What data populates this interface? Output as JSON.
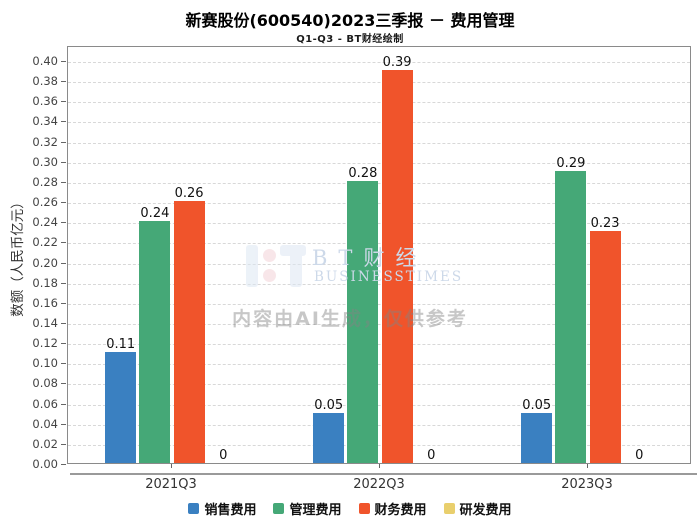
{
  "watermark": {
    "brand_cn": "BT财经",
    "brand_en": "BUSINESSTIMES",
    "disclaimer": "内容由AI生成，仅供参考"
  },
  "chart_data": {
    "type": "bar",
    "title": "新赛股份(600540)2023三季报 － 费用管理",
    "subtitle": "Q1-Q3 - BT财经绘制",
    "ylabel": "数额（人民币亿元）",
    "categories": [
      "2021Q3",
      "2022Q3",
      "2023Q3"
    ],
    "series": [
      {
        "name": "销售费用",
        "color": "#3a80c1",
        "values": [
          0.11,
          0.05,
          0.05
        ]
      },
      {
        "name": "管理费用",
        "color": "#45a877",
        "values": [
          0.24,
          0.28,
          0.29
        ]
      },
      {
        "name": "财务费用",
        "color": "#f0542b",
        "values": [
          0.26,
          0.39,
          0.23
        ]
      },
      {
        "name": "研发费用",
        "color": "#e9cf6d",
        "values": [
          0,
          0,
          0
        ]
      }
    ],
    "value_labels": [
      [
        "0.11",
        "0.24",
        "0.26",
        "0"
      ],
      [
        "0.05",
        "0.28",
        "0.39",
        "0"
      ],
      [
        "0.05",
        "0.29",
        "0.23",
        "0"
      ]
    ],
    "ylim": [
      0,
      0.4
    ],
    "ytick_step": 0.02,
    "grid": true,
    "gridline_style": "dashed",
    "legend_position": "bottom"
  }
}
